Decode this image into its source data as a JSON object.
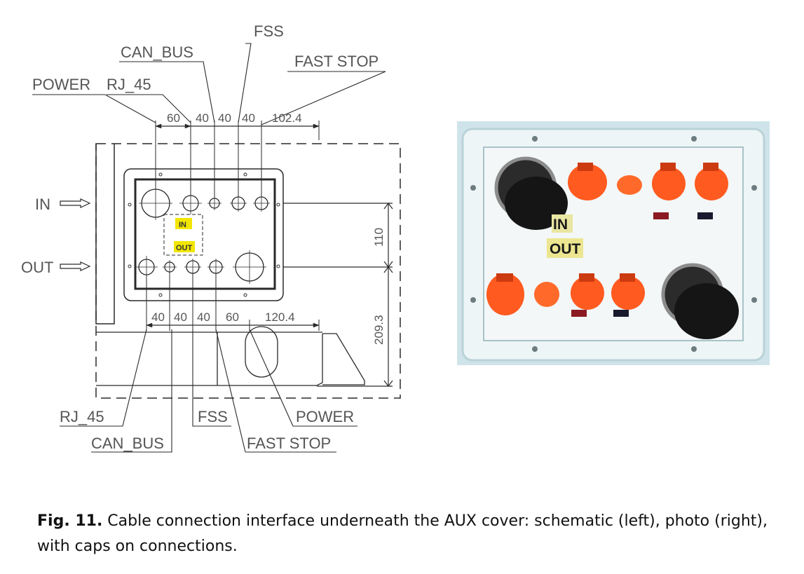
{
  "schematic": {
    "top_labels": {
      "power": "POWER",
      "rj45": "RJ_45",
      "can_bus": "CAN_BUS",
      "fss": "FSS",
      "fast_stop": "FAST STOP"
    },
    "bottom_labels": {
      "rj45": "RJ_45",
      "can_bus": "CAN_BUS",
      "fss": "FSS",
      "power": "POWER",
      "fast_stop": "FAST STOP"
    },
    "side_labels": {
      "in": "IN",
      "out": "OUT"
    },
    "top_dims": [
      "60",
      "40",
      "40",
      "40",
      "102.4"
    ],
    "bottom_dims": [
      "40",
      "40",
      "40",
      "60",
      "120.4"
    ],
    "vertical_dims": [
      "110",
      "209.3"
    ],
    "tags": {
      "in": "IN",
      "out": "OUT"
    },
    "colors": {
      "line": "#2a2a2a",
      "tag": "#f2e600"
    }
  },
  "photo": {
    "tags": {
      "in": "IN",
      "out": "OUT"
    },
    "colors": {
      "panel": "#e9f2f3",
      "frame": "#c5dfe6",
      "cap": "#ff5a1f",
      "black_cap": "#1b1b1b"
    }
  },
  "caption": {
    "label": "Fig. 11.",
    "text": " Cable connection interface underneath the AUX cover: schematic (left), photo (right), with caps on connections."
  }
}
